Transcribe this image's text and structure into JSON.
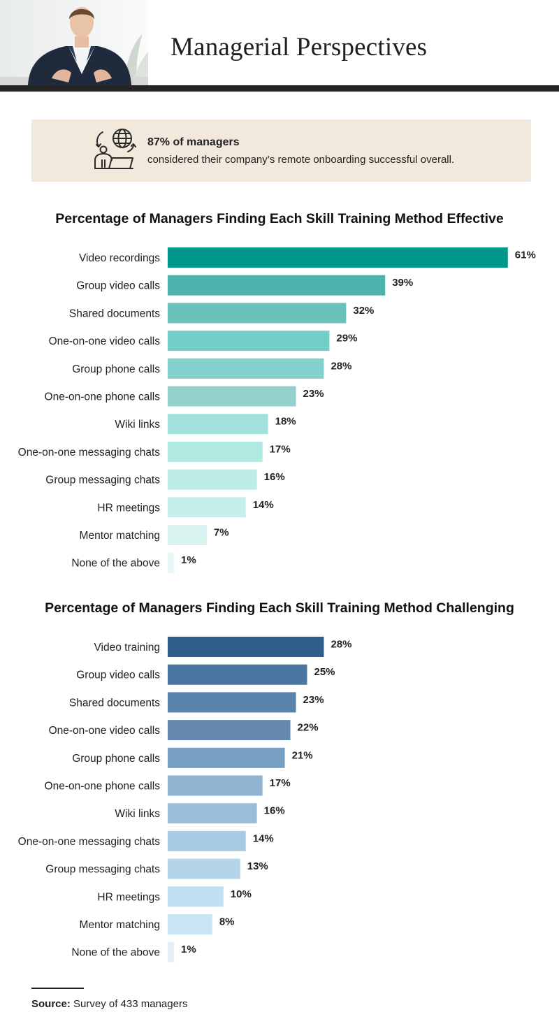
{
  "header": {
    "title": "Managerial Perspectives"
  },
  "callout": {
    "icon": "remote-manager-globe-icon",
    "headline": "87% of managers",
    "body": "considered their company’s remote onboarding successful overall."
  },
  "chart_data": [
    {
      "type": "bar",
      "orientation": "horizontal",
      "title": "Percentage of Managers Finding Each Skill Training Method Effective",
      "categories": [
        "Video recordings",
        "Group video calls",
        "Shared documents",
        "One-on-one video calls",
        "Group phone calls",
        "One-on-one phone calls",
        "Wiki links",
        "One-on-one messaging chats",
        "Group messaging chats",
        "HR meetings",
        "Mentor matching",
        "None of the above"
      ],
      "values": [
        61,
        39,
        32,
        29,
        28,
        23,
        18,
        17,
        16,
        14,
        7,
        1
      ],
      "value_suffix": "%",
      "colors": [
        "#00968a",
        "#4db3ac",
        "#6bc2bb",
        "#74cdc6",
        "#85d1cb",
        "#94d1cc",
        "#a3e2dc",
        "#b0e8e2",
        "#bdece6",
        "#c4efea",
        "#d9f3f0",
        "#e8f6f5"
      ],
      "grid": false,
      "legend": "none"
    },
    {
      "type": "bar",
      "orientation": "horizontal",
      "title": "Percentage of Managers Finding Each Skill Training Method Challenging",
      "categories": [
        "Video training",
        "Group video calls",
        "Shared documents",
        "One-on-one video calls",
        "Group phone calls",
        "One-on-one phone calls",
        "Wiki links",
        "One-on-one messaging chats",
        "Group messaging chats",
        "HR meetings",
        "Mentor matching",
        "None of the above"
      ],
      "values": [
        28,
        25,
        23,
        22,
        21,
        17,
        16,
        14,
        13,
        10,
        8,
        1
      ],
      "value_suffix": "%",
      "colors": [
        "#2e5f8c",
        "#4a76a2",
        "#5b84ad",
        "#6689b2",
        "#779fc2",
        "#8fb3d1",
        "#9bbfda",
        "#a8cae2",
        "#b4d5e9",
        "#bfdff2",
        "#c9e4f3",
        "#e4eef4"
      ],
      "grid": false,
      "legend": "none"
    }
  ],
  "source": {
    "label": "Source:",
    "text": "Survey of 433 managers"
  }
}
